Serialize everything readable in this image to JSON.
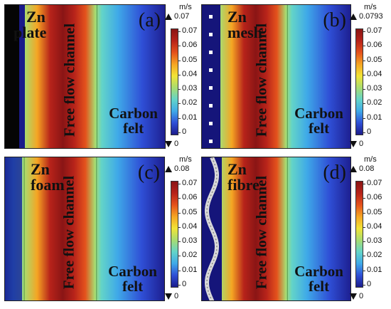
{
  "colormap": [
    "#1c1c8c",
    "#2f4fd6",
    "#3fa9e8",
    "#63d4c8",
    "#a8dc70",
    "#f2e436",
    "#f5a523",
    "#e4521c",
    "#b7231a",
    "#8a1515"
  ],
  "panels": [
    {
      "id": "a",
      "letter": "(a)",
      "zn_text": [
        "Zn",
        "plate"
      ],
      "channel_text": "Free flow channel",
      "felt_text": [
        "Carbon",
        "felt"
      ],
      "unit": "m/s",
      "max_label": "0.07",
      "min_label": "0",
      "ticks": [
        "0.07",
        "0.06",
        "0.05",
        "0.04",
        "0.03",
        "0.02",
        "0.01",
        "0"
      ],
      "electrode": "plate"
    },
    {
      "id": "b",
      "letter": "(b)",
      "zn_text": [
        "Zn",
        "mesh"
      ],
      "channel_text": "Free flow channel",
      "felt_text": [
        "Carbon",
        "felt"
      ],
      "unit": "m/s",
      "max_label": "0.0793",
      "min_label": "0",
      "ticks": [
        "0.07",
        "0.06",
        "0.05",
        "0.04",
        "0.03",
        "0.02",
        "0.01",
        "0"
      ],
      "electrode": "mesh"
    },
    {
      "id": "c",
      "letter": "(c)",
      "zn_text": [
        "Zn",
        "foam"
      ],
      "channel_text": "Free flow channel",
      "felt_text": [
        "Carbon",
        "felt"
      ],
      "unit": "m/s",
      "max_label": "0.08",
      "min_label": "0",
      "ticks": [
        "0.07",
        "0.06",
        "0.05",
        "0.04",
        "0.03",
        "0.02",
        "0.01",
        "0"
      ],
      "electrode": "foam"
    },
    {
      "id": "d",
      "letter": "(d)",
      "zn_text": [
        "Zn",
        "fibre"
      ],
      "channel_text": "Free flow channel",
      "felt_text": [
        "Carbon",
        "felt"
      ],
      "unit": "m/s",
      "max_label": "0.08",
      "min_label": "0",
      "ticks": [
        "0.07",
        "0.06",
        "0.05",
        "0.04",
        "0.03",
        "0.02",
        "0.01",
        "0"
      ],
      "electrode": "fibre"
    }
  ]
}
